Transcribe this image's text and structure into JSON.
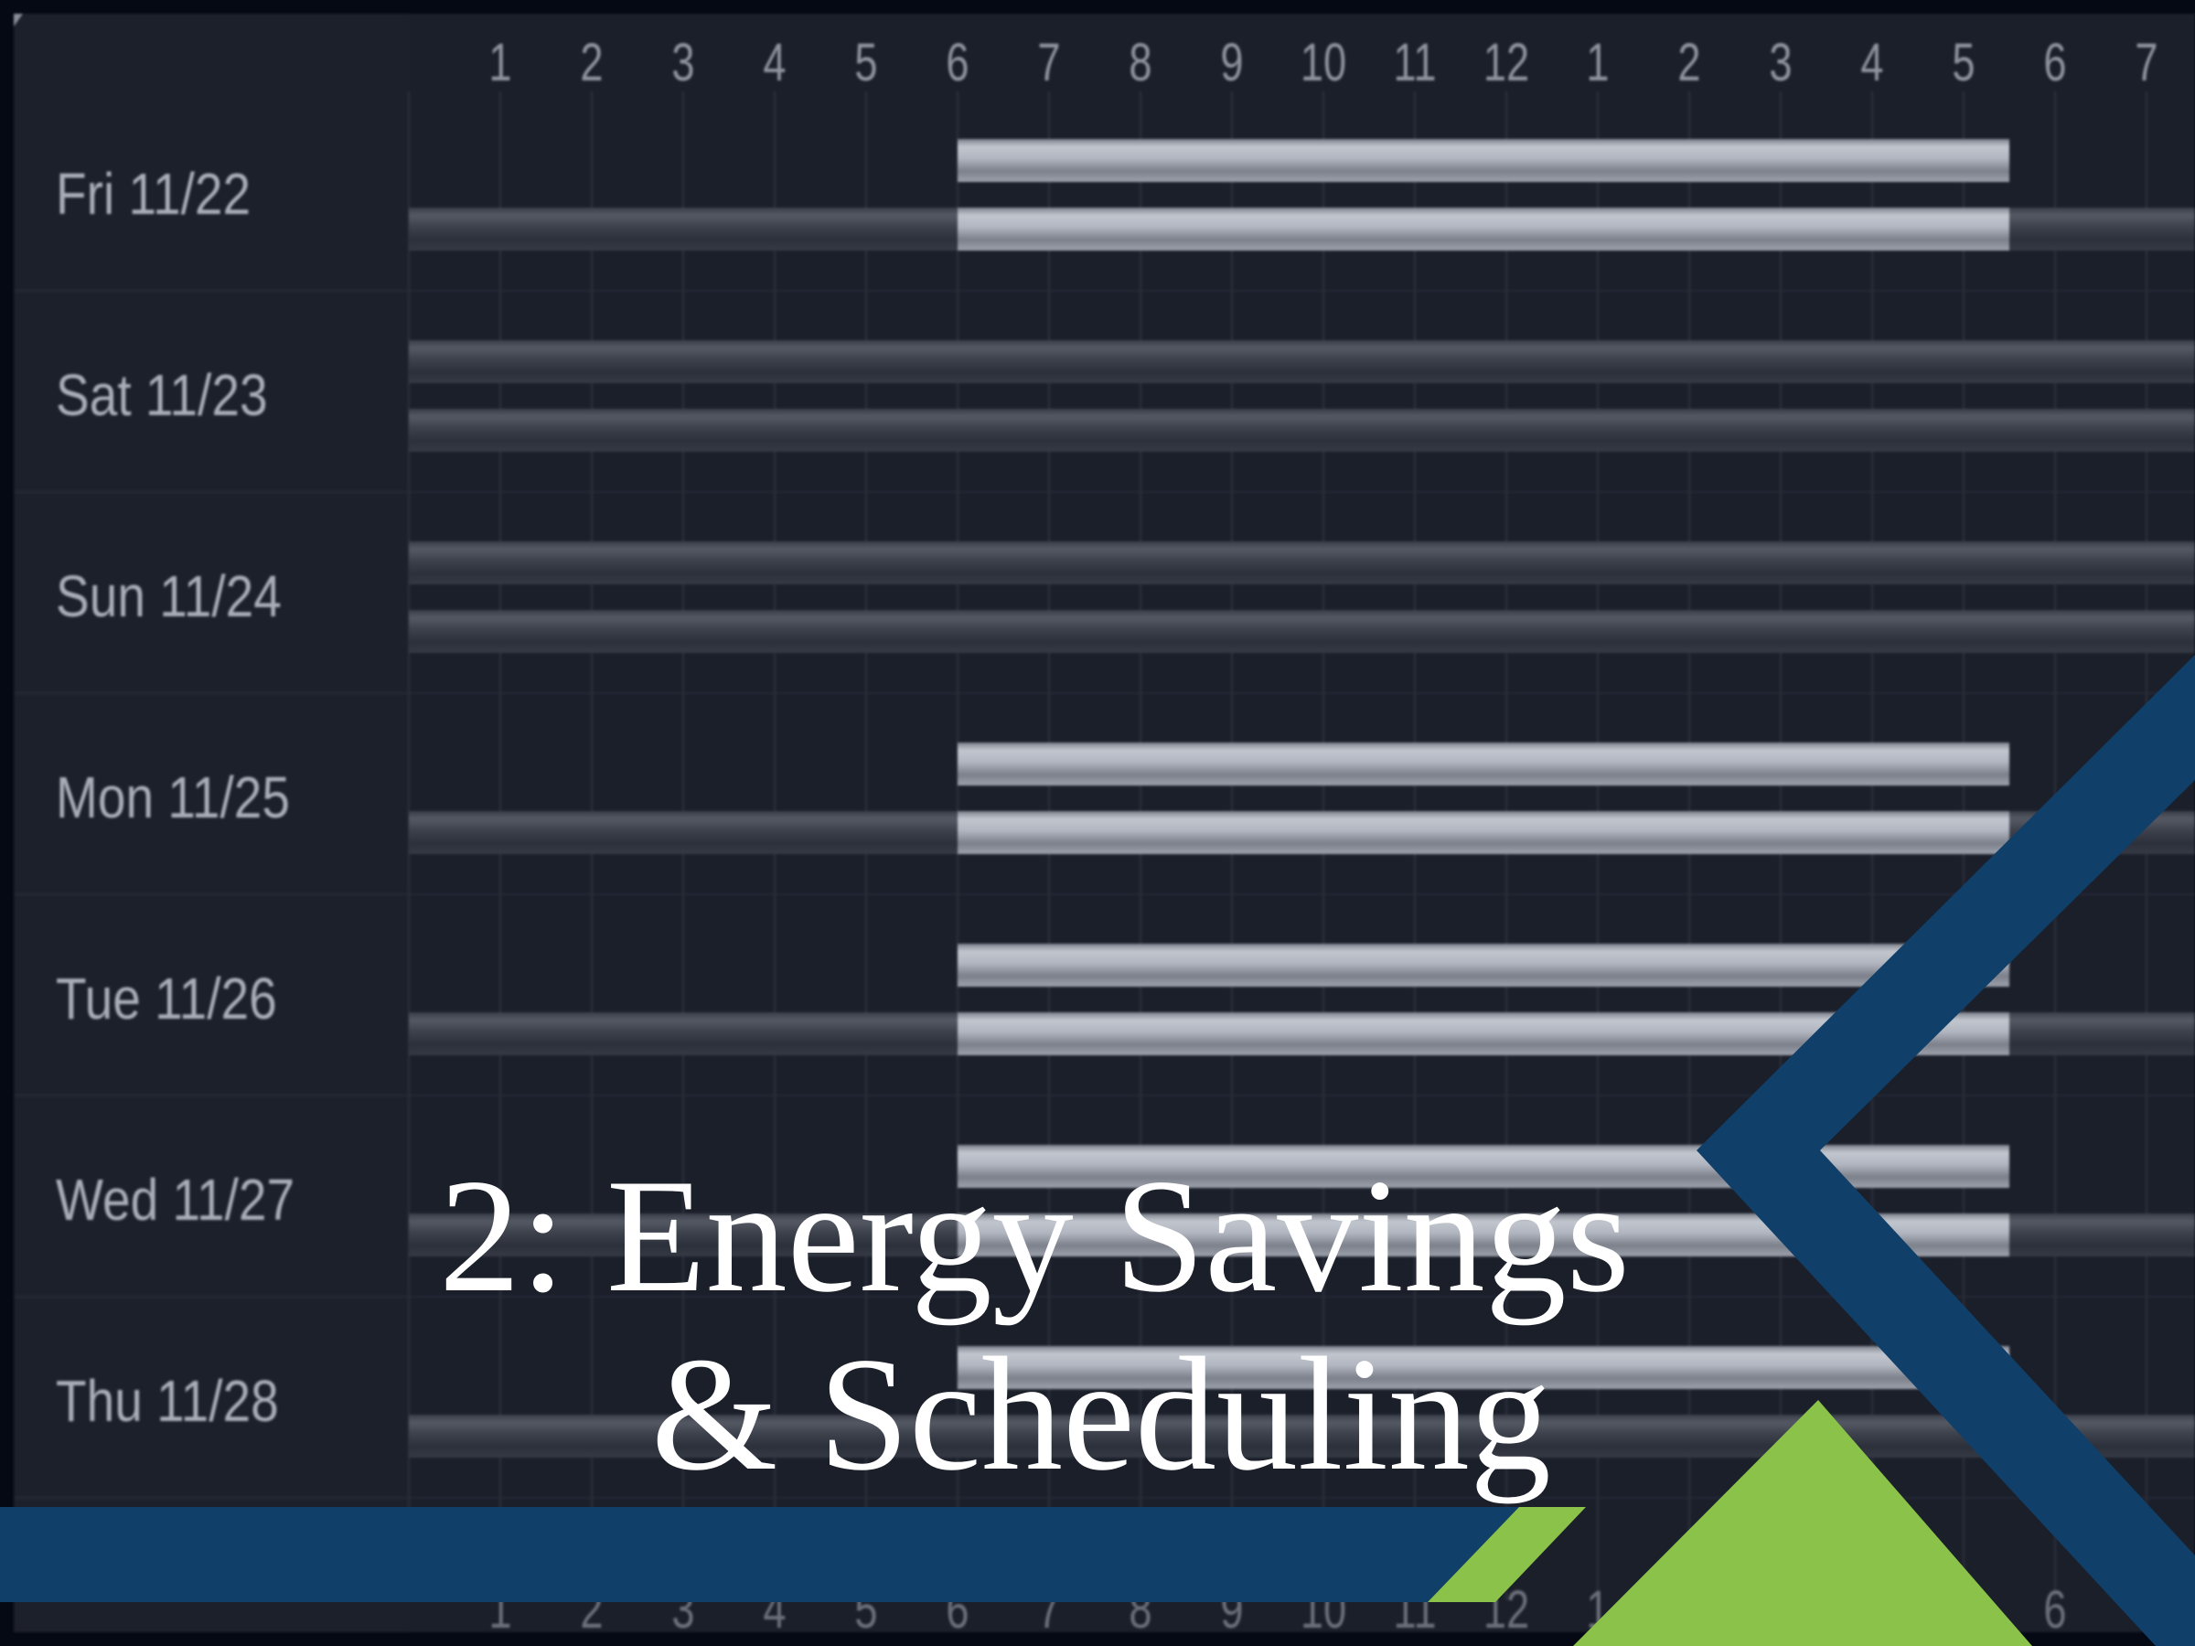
{
  "schedule": {
    "hour_labels": [
      "1",
      "2",
      "3",
      "4",
      "5",
      "6",
      "7",
      "8",
      "9",
      "10",
      "11",
      "12",
      "1",
      "2",
      "3",
      "4",
      "5",
      "6",
      "7"
    ],
    "days": [
      {
        "label": "Fri 11/22",
        "tracks": [
          [
            {
              "from": 6,
              "to": 17.5,
              "state": "on"
            }
          ],
          [
            {
              "from": 0,
              "to": 6,
              "state": "off"
            },
            {
              "from": 6,
              "to": 17.5,
              "state": "on"
            },
            {
              "from": 17.5,
              "to": 19.6,
              "state": "off"
            }
          ]
        ]
      },
      {
        "label": "Sat 11/23",
        "tracks": [
          [
            {
              "from": 0,
              "to": 19.6,
              "state": "off"
            }
          ],
          [
            {
              "from": 0,
              "to": 19.6,
              "state": "off"
            }
          ]
        ]
      },
      {
        "label": "Sun 11/24",
        "tracks": [
          [
            {
              "from": 0,
              "to": 19.6,
              "state": "off"
            }
          ],
          [
            {
              "from": 0,
              "to": 19.6,
              "state": "off"
            }
          ]
        ]
      },
      {
        "label": "Mon 11/25",
        "tracks": [
          [
            {
              "from": 6,
              "to": 17.5,
              "state": "on"
            }
          ],
          [
            {
              "from": 0,
              "to": 6,
              "state": "off"
            },
            {
              "from": 6,
              "to": 17.5,
              "state": "on"
            },
            {
              "from": 17.5,
              "to": 19.6,
              "state": "off"
            }
          ]
        ]
      },
      {
        "label": "Tue 11/26",
        "tracks": [
          [
            {
              "from": 6,
              "to": 17.5,
              "state": "on"
            }
          ],
          [
            {
              "from": 0,
              "to": 6,
              "state": "off"
            },
            {
              "from": 6,
              "to": 17.5,
              "state": "on"
            },
            {
              "from": 17.5,
              "to": 19.6,
              "state": "off"
            }
          ]
        ]
      },
      {
        "label": "Wed 11/27",
        "tracks": [
          [
            {
              "from": 6,
              "to": 17.5,
              "state": "on"
            }
          ],
          [
            {
              "from": 0,
              "to": 6,
              "state": "off"
            },
            {
              "from": 6,
              "to": 17.5,
              "state": "on"
            },
            {
              "from": 17.5,
              "to": 19.6,
              "state": "off"
            }
          ]
        ]
      },
      {
        "label": "Thu 11/28",
        "tracks": [
          [
            {
              "from": 6,
              "to": 17.5,
              "state": "on"
            }
          ],
          [
            {
              "from": 0,
              "to": 19.6,
              "state": "off"
            }
          ]
        ]
      }
    ]
  },
  "title": {
    "line1": "2: Energy Savings",
    "line2": "& Scheduling"
  },
  "colors": {
    "navy": "#10406a",
    "green": "#8bc34a",
    "panel": "#1b1f2a"
  }
}
